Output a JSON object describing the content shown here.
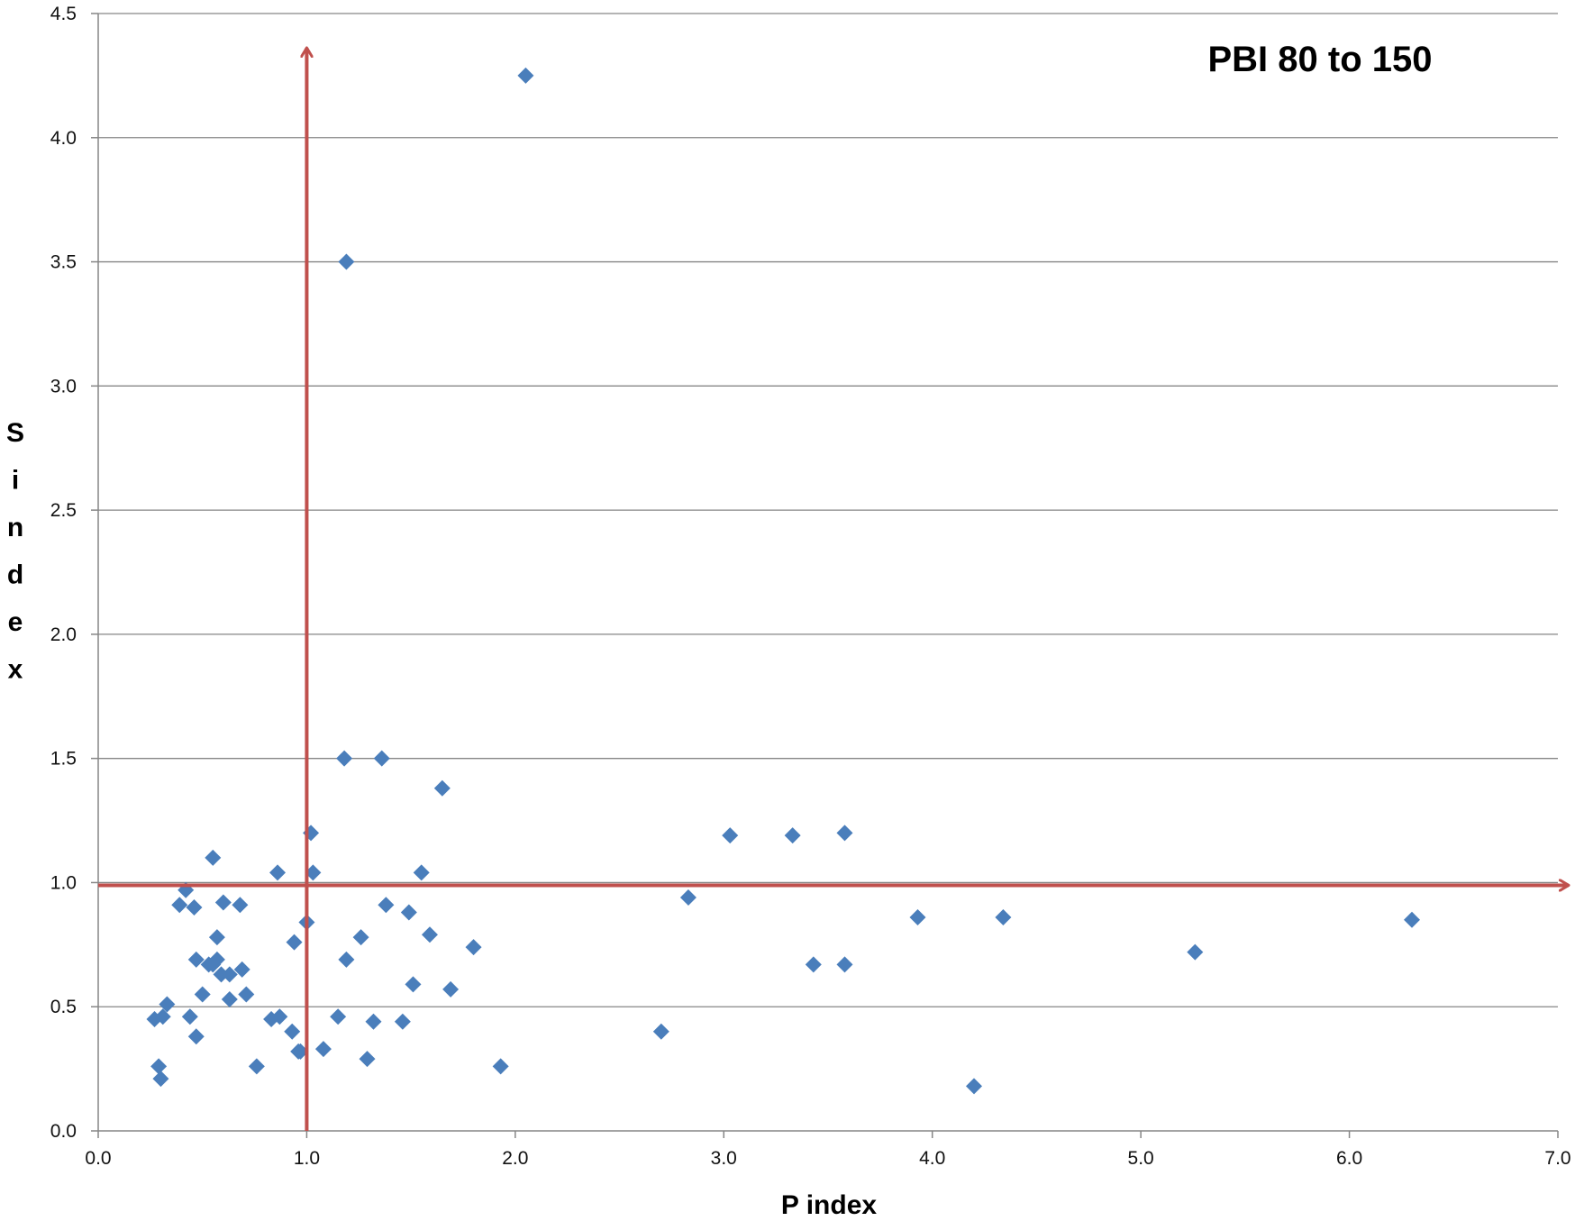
{
  "chart_data": {
    "type": "scatter",
    "title": "",
    "annotation": "PBI 80 to 150",
    "xlabel": "P index",
    "ylabel": "S index",
    "ylabel_vertical_letters": [
      "S",
      "i",
      "n",
      "d",
      "e",
      "x"
    ],
    "xlim": [
      0.0,
      7.0
    ],
    "ylim": [
      0.0,
      4.5
    ],
    "x_ticks": [
      "0.0",
      "1.0",
      "2.0",
      "3.0",
      "4.0",
      "5.0",
      "6.0",
      "7.0"
    ],
    "y_ticks": [
      "0.0",
      "0.5",
      "1.0",
      "1.5",
      "2.0",
      "2.5",
      "3.0",
      "3.5",
      "4.0",
      "4.5"
    ],
    "grid": "horizontal",
    "marker": "diamond",
    "colors": {
      "marker": "#4a7ebb",
      "reference_arrow": "#c0504d",
      "grid": "#868686",
      "axis": "#868686"
    },
    "reference_lines": [
      {
        "orientation": "vertical",
        "x": 1.0,
        "arrow": "up"
      },
      {
        "orientation": "horizontal",
        "y": 1.0,
        "arrow": "right"
      }
    ],
    "series": [
      {
        "points": [
          [
            0.27,
            0.45
          ],
          [
            0.29,
            0.26
          ],
          [
            0.3,
            0.21
          ],
          [
            0.31,
            0.46
          ],
          [
            0.33,
            0.51
          ],
          [
            0.39,
            0.91
          ],
          [
            0.42,
            0.97
          ],
          [
            0.44,
            0.46
          ],
          [
            0.46,
            0.9
          ],
          [
            0.47,
            0.69
          ],
          [
            0.47,
            0.38
          ],
          [
            0.5,
            0.55
          ],
          [
            0.53,
            0.67
          ],
          [
            0.55,
            0.67
          ],
          [
            0.55,
            1.1
          ],
          [
            0.57,
            0.69
          ],
          [
            0.57,
            0.78
          ],
          [
            0.59,
            0.63
          ],
          [
            0.6,
            0.92
          ],
          [
            0.63,
            0.63
          ],
          [
            0.63,
            0.53
          ],
          [
            0.68,
            0.91
          ],
          [
            0.69,
            0.65
          ],
          [
            0.71,
            0.55
          ],
          [
            0.76,
            0.26
          ],
          [
            0.83,
            0.45
          ],
          [
            0.86,
            1.04
          ],
          [
            0.87,
            0.46
          ],
          [
            0.93,
            0.4
          ],
          [
            0.94,
            0.76
          ],
          [
            0.96,
            0.32
          ],
          [
            0.97,
            0.32
          ],
          [
            1.0,
            0.84
          ],
          [
            1.02,
            1.2
          ],
          [
            1.03,
            1.04
          ],
          [
            1.08,
            0.33
          ],
          [
            1.15,
            0.46
          ],
          [
            1.18,
            1.5
          ],
          [
            1.19,
            0.69
          ],
          [
            1.19,
            3.5
          ],
          [
            1.26,
            0.78
          ],
          [
            1.29,
            0.29
          ],
          [
            1.32,
            0.44
          ],
          [
            1.36,
            1.5
          ],
          [
            1.38,
            0.91
          ],
          [
            1.46,
            0.44
          ],
          [
            1.49,
            0.88
          ],
          [
            1.51,
            0.59
          ],
          [
            1.55,
            1.04
          ],
          [
            1.59,
            0.79
          ],
          [
            1.65,
            1.38
          ],
          [
            1.69,
            0.57
          ],
          [
            1.8,
            0.74
          ],
          [
            1.93,
            0.26
          ],
          [
            2.05,
            4.25
          ],
          [
            2.7,
            0.4
          ],
          [
            2.83,
            0.94
          ],
          [
            3.03,
            1.19
          ],
          [
            3.33,
            1.19
          ],
          [
            3.43,
            0.67
          ],
          [
            3.58,
            0.67
          ],
          [
            3.58,
            1.2
          ],
          [
            3.93,
            0.86
          ],
          [
            4.2,
            0.18
          ],
          [
            4.34,
            0.86
          ],
          [
            5.26,
            0.72
          ],
          [
            6.3,
            0.85
          ]
        ]
      }
    ]
  }
}
